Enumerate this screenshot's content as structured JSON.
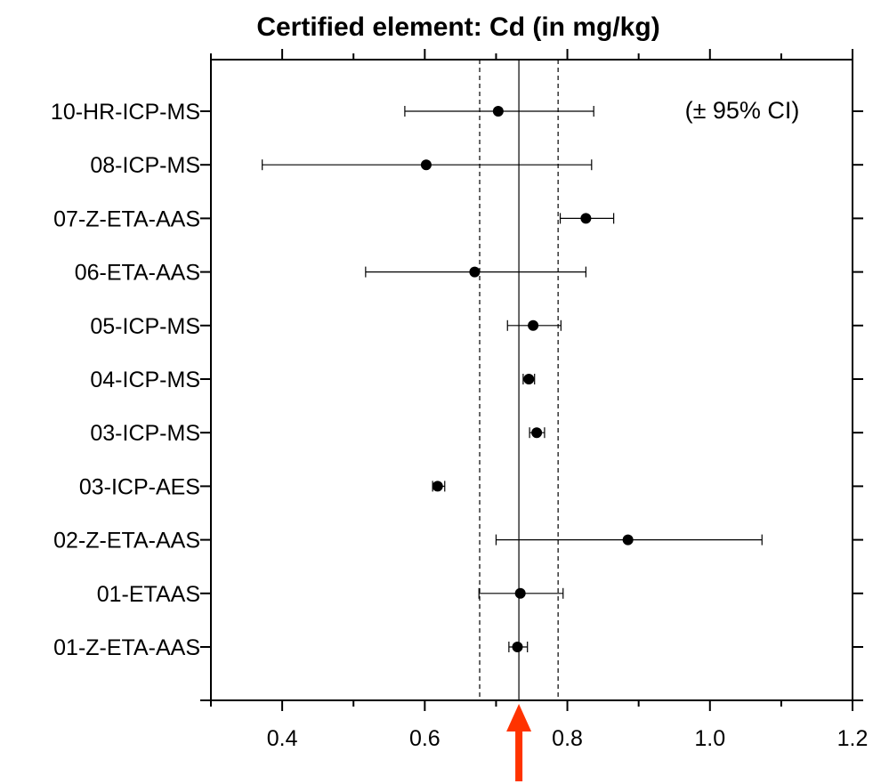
{
  "chart_data": {
    "type": "scatter",
    "title": "Certified element: Cd (in mg/kg)",
    "annotation": "(± 95% CI)",
    "xlabel": "",
    "ylabel": "",
    "xlim": [
      0.3,
      1.2
    ],
    "xticks": [
      "0.4",
      "0.6",
      "0.8",
      "1.0",
      "1.2"
    ],
    "grid": false,
    "certified_value": 0.732,
    "certified_interval": [
      0.677,
      0.787
    ],
    "marker_color": "#000000",
    "arrow_color": "#ff3300",
    "labs": [
      {
        "label": "10-HR-ICP-MS",
        "value": 0.703,
        "ci_low": 0.572,
        "ci_high": 0.837
      },
      {
        "label": "08-ICP-MS",
        "value": 0.602,
        "ci_low": 0.372,
        "ci_high": 0.834
      },
      {
        "label": "07-Z-ETA-AAS",
        "value": 0.826,
        "ci_low": 0.79,
        "ci_high": 0.865
      },
      {
        "label": "06-ETA-AAS",
        "value": 0.67,
        "ci_low": 0.517,
        "ci_high": 0.826
      },
      {
        "label": "05-ICP-MS",
        "value": 0.752,
        "ci_low": 0.716,
        "ci_high": 0.791
      },
      {
        "label": "04-ICP-MS",
        "value": 0.746,
        "ci_low": 0.738,
        "ci_high": 0.754
      },
      {
        "label": "03-ICP-MS",
        "value": 0.757,
        "ci_low": 0.747,
        "ci_high": 0.768
      },
      {
        "label": "03-ICP-AES",
        "value": 0.618,
        "ci_low": 0.611,
        "ci_high": 0.628
      },
      {
        "label": "02-Z-ETA-AAS",
        "value": 0.885,
        "ci_low": 0.7,
        "ci_high": 1.073
      },
      {
        "label": "01-ETAAS",
        "value": 0.734,
        "ci_low": 0.676,
        "ci_high": 0.794
      },
      {
        "label": "01-Z-ETA-AAS",
        "value": 0.73,
        "ci_low": 0.718,
        "ci_high": 0.744
      }
    ]
  }
}
